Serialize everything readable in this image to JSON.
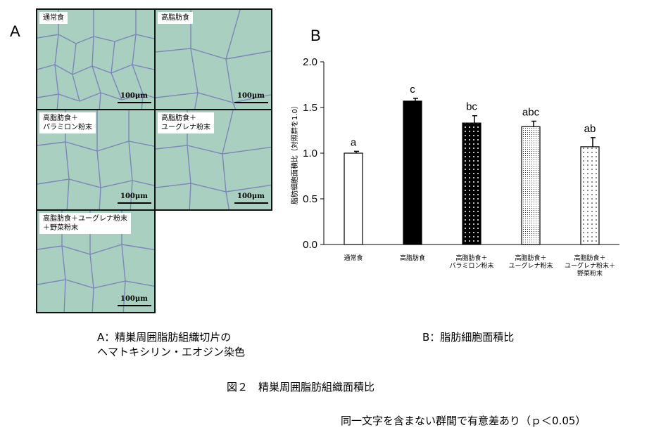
{
  "panel_a_letter": "A",
  "panel_b_letter": "B",
  "micrographs": [
    {
      "label": "通常食",
      "scale": "100μm"
    },
    {
      "label": "高脂肪食",
      "scale": "100μm"
    },
    {
      "label": "高脂肪食＋\nパラミロン粉末",
      "scale": "100μm"
    },
    {
      "label": "高脂肪食＋\nユーグレナ粉末",
      "scale": "100μm"
    },
    {
      "label": "高脂肪食＋ユーグレナ粉末\n＋野菜粉末",
      "scale": "100μm"
    }
  ],
  "caption_a": "A：精巣周囲脂肪組織切片の\nヘマトキシリン・エオジン染色",
  "caption_b": "B：脂肪細胞面積比",
  "figure_title": "図２　精巣周囲脂肪組織面積比",
  "footnote": "同一文字を含まない群間で有意差あり（ｐ＜0.05）",
  "chart_data": {
    "type": "bar",
    "ylabel": "脂肪細胞面積比（対照群を1.0）",
    "ylim": [
      0.0,
      2.0
    ],
    "yticks": [
      "0.0",
      "0.5",
      "1.0",
      "1.5",
      "2.0"
    ],
    "categories": [
      "通常食",
      "高脂肪食",
      "高脂肪食＋\nパラミロン粉末",
      "高脂肪食＋\nユーグレナ粉末",
      "高脂肪食＋\nユーグレナ粉末＋\n野菜粉末"
    ],
    "values": [
      1.0,
      1.57,
      1.33,
      1.29,
      1.07
    ],
    "errors": [
      0.02,
      0.03,
      0.08,
      0.06,
      0.1
    ],
    "significance_letters": [
      "a",
      "c",
      "bc",
      "abc",
      "ab"
    ],
    "fills": [
      "white",
      "black",
      "dense-dots",
      "fine-dots",
      "sparse-dots"
    ]
  }
}
